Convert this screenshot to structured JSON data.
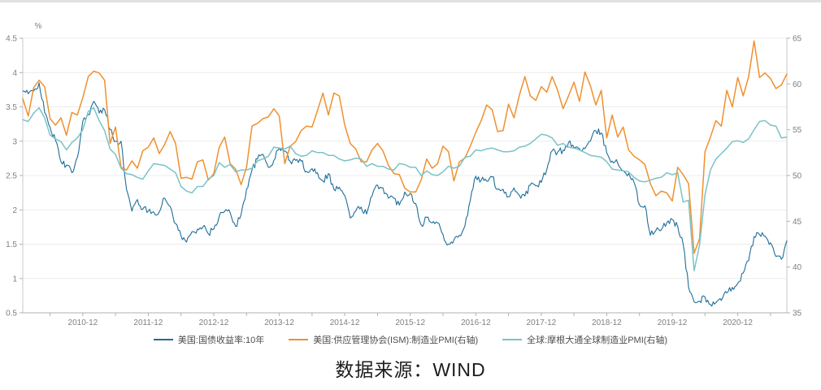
{
  "page": {
    "caption": "数据来源：WIND"
  },
  "colors": {
    "treasury_blue": "#1e6e99",
    "ism_orange": "#f0902e",
    "global_pmi_teal": "#7ac3c7",
    "grid": "#ececec",
    "axis_line": "#c9c9c9",
    "bottom_axis_line": "#b0b0b0",
    "axis_label": "#7f7f7f",
    "legend_text": "#4d4d4d",
    "top_border": "#e1e1e1"
  },
  "chart_data": {
    "type": "line",
    "title": "",
    "x_start": "2010-01",
    "x_end": "2021-09",
    "x_tick_labels": [
      "2010-12",
      "2011-12",
      "2012-12",
      "2013-12",
      "2014-12",
      "2015-12",
      "2016-12",
      "2017-12",
      "2018-12",
      "2019-12",
      "2020-12"
    ],
    "x_tick_month_indices": [
      11,
      23,
      35,
      47,
      59,
      71,
      83,
      95,
      107,
      119,
      131
    ],
    "minor_tick_every_months": 6,
    "minor_tick_start_index": 5,
    "left_axis": {
      "unit": "%",
      "min": 0.5,
      "max": 4.5,
      "ticks": [
        4.5,
        4,
        3.5,
        3,
        2.5,
        2,
        1.5,
        1,
        0.5
      ]
    },
    "right_axis": {
      "min": 35,
      "max": 65,
      "ticks": [
        65,
        60,
        55,
        50,
        45,
        40,
        35
      ]
    },
    "grid": true,
    "legend_position": "bottom",
    "series": [
      {
        "name": "美国:国债收益率:10年",
        "axis": "left",
        "color": "#1e6e99",
        "line_width": 1.1,
        "render_noise": 0.05,
        "values": [
          3.73,
          3.69,
          3.73,
          3.85,
          3.42,
          3.2,
          3.01,
          2.7,
          2.65,
          2.54,
          2.76,
          3.29,
          3.39,
          3.58,
          3.41,
          3.46,
          3.17,
          3.0,
          3.0,
          2.3,
          1.98,
          2.15,
          2.01,
          1.98,
          1.97,
          1.97,
          2.17,
          2.05,
          1.8,
          1.62,
          1.53,
          1.68,
          1.72,
          1.75,
          1.65,
          1.72,
          1.91,
          1.98,
          1.96,
          1.76,
          1.93,
          2.3,
          2.58,
          2.74,
          2.81,
          2.62,
          2.72,
          2.9,
          2.86,
          2.71,
          2.72,
          2.71,
          2.56,
          2.6,
          2.54,
          2.42,
          2.53,
          2.3,
          2.33,
          2.21,
          1.88,
          1.98,
          2.04,
          1.94,
          2.2,
          2.36,
          2.32,
          2.17,
          2.17,
          2.07,
          2.26,
          2.24,
          2.09,
          1.78,
          1.89,
          1.81,
          1.81,
          1.64,
          1.5,
          1.56,
          1.63,
          1.76,
          2.14,
          2.49,
          2.43,
          2.42,
          2.48,
          2.3,
          2.3,
          2.19,
          2.32,
          2.21,
          2.2,
          2.36,
          2.35,
          2.4,
          2.58,
          2.86,
          2.84,
          2.87,
          2.98,
          2.91,
          2.89,
          2.89,
          3.0,
          3.15,
          3.12,
          2.83,
          2.71,
          2.68,
          2.57,
          2.53,
          2.4,
          2.07,
          2.06,
          1.63,
          1.7,
          1.71,
          1.81,
          1.86,
          1.76,
          1.5,
          0.87,
          0.66,
          0.67,
          0.73,
          0.62,
          0.65,
          0.68,
          0.79,
          0.87,
          0.93,
          1.08,
          1.26,
          1.61,
          1.64,
          1.62,
          1.52,
          1.32,
          1.28,
          1.55
        ]
      },
      {
        "name": "美国:供应管理协会(ISM):制造业PMI(右轴)",
        "axis": "right",
        "color": "#f0902e",
        "line_width": 1.5,
        "render_noise": 0,
        "values": [
          58.4,
          56.5,
          59.6,
          60.4,
          59.7,
          56.2,
          55.5,
          56.3,
          54.4,
          56.9,
          56.6,
          58.5,
          60.8,
          61.4,
          61.2,
          60.4,
          53.5,
          55.3,
          50.9,
          50.6,
          51.6,
          50.8,
          52.7,
          53.1,
          54.1,
          52.4,
          53.4,
          54.8,
          53.5,
          49.7,
          49.8,
          49.6,
          51.5,
          51.7,
          49.5,
          50.2,
          53.1,
          54.2,
          51.3,
          50.7,
          49.0,
          50.9,
          55.4,
          55.7,
          56.2,
          56.4,
          57.3,
          56.5,
          51.3,
          53.2,
          53.7,
          54.9,
          55.4,
          55.3,
          57.1,
          59.0,
          56.6,
          59.0,
          58.7,
          55.5,
          53.5,
          52.9,
          51.5,
          51.5,
          52.8,
          53.5,
          52.7,
          51.1,
          50.2,
          50.1,
          48.6,
          48.2,
          48.2,
          49.5,
          51.8,
          50.8,
          51.3,
          53.2,
          52.6,
          49.4,
          51.5,
          51.9,
          53.2,
          54.7,
          56.0,
          57.7,
          57.2,
          54.8,
          54.9,
          57.8,
          56.3,
          58.8,
          60.8,
          58.7,
          58.2,
          59.7,
          59.1,
          60.8,
          59.3,
          57.3,
          58.7,
          60.2,
          58.1,
          61.3,
          59.8,
          57.7,
          59.3,
          54.1,
          56.6,
          54.2,
          55.3,
          52.8,
          52.1,
          51.7,
          51.2,
          49.1,
          47.8,
          48.3,
          48.1,
          47.2,
          50.9,
          50.1,
          49.1,
          41.5,
          43.1,
          52.6,
          54.2,
          56.0,
          55.4,
          59.3,
          57.5,
          60.7,
          58.7,
          60.8,
          64.7,
          60.7,
          61.2,
          60.6,
          59.5,
          59.9,
          61.1
        ]
      },
      {
        "name": "全球:摩根大通全球制造业PMI(右轴)",
        "axis": "right",
        "color": "#7ac3c7",
        "line_width": 1.5,
        "render_noise": 0,
        "values": [
          56.1,
          55.9,
          56.8,
          57.4,
          56.3,
          54.4,
          54.0,
          53.7,
          52.8,
          53.6,
          54.1,
          55.0,
          57.0,
          57.4,
          56.0,
          54.9,
          52.9,
          52.3,
          50.8,
          50.2,
          50.1,
          49.8,
          49.6,
          50.5,
          51.3,
          51.2,
          51.1,
          50.7,
          50.3,
          48.8,
          48.3,
          48.1,
          48.8,
          48.8,
          49.6,
          50.0,
          51.4,
          50.9,
          51.2,
          50.4,
          50.6,
          50.6,
          50.8,
          51.6,
          51.8,
          52.1,
          53.1,
          53.0,
          52.9,
          53.2,
          52.4,
          52.1,
          52.2,
          52.7,
          52.5,
          52.5,
          52.2,
          52.2,
          51.8,
          51.6,
          51.7,
          51.9,
          51.8,
          51.0,
          51.3,
          51.0,
          51.0,
          50.7,
          50.6,
          51.3,
          51.2,
          50.9,
          50.9,
          50.0,
          50.5,
          50.1,
          50.0,
          50.4,
          51.0,
          50.8,
          51.0,
          52.0,
          52.1,
          52.8,
          52.7,
          52.9,
          53.0,
          52.8,
          52.6,
          52.6,
          52.7,
          53.1,
          53.2,
          53.5,
          54.0,
          54.5,
          54.4,
          54.1,
          53.3,
          53.5,
          53.1,
          53.0,
          52.8,
          52.5,
          52.2,
          52.1,
          52.0,
          51.5,
          50.7,
          50.6,
          50.5,
          50.4,
          49.8,
          49.4,
          49.3,
          49.5,
          49.7,
          49.8,
          50.3,
          50.1,
          50.3,
          47.1,
          47.3,
          39.6,
          42.4,
          47.9,
          50.6,
          51.8,
          52.4,
          53.0,
          53.7,
          53.8,
          53.6,
          54.0,
          55.0,
          55.9,
          56.0,
          55.5,
          55.4,
          54.1,
          54.2
        ]
      }
    ]
  }
}
